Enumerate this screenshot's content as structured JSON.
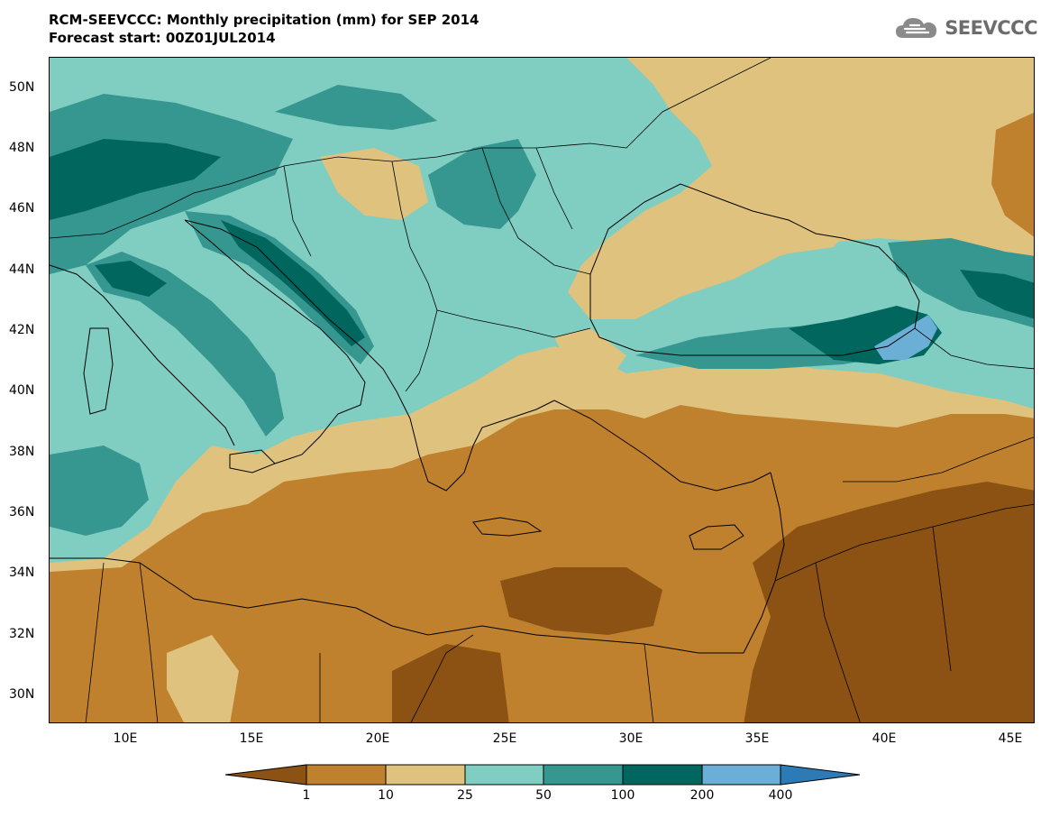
{
  "header": {
    "title_line1": "RCM-SEEVCCC: Monthly precipitation (mm) for SEP 2014",
    "title_line2": "Forecast start: 00Z01JUL2014"
  },
  "logo": {
    "text": "SEEVCCC",
    "icon": "cloud-logo-icon"
  },
  "map": {
    "projection": "lat-lon",
    "lon_range": [
      7,
      46
    ],
    "lat_range": [
      29,
      51
    ],
    "lat_ticks": [
      "50N",
      "48N",
      "46N",
      "44N",
      "42N",
      "40N",
      "38N",
      "36N",
      "34N",
      "32N",
      "30N"
    ],
    "lon_ticks": [
      "10E",
      "15E",
      "20E",
      "25E",
      "30E",
      "35E",
      "40E",
      "45E"
    ],
    "features": [
      "coastlines",
      "country-borders"
    ]
  },
  "legend": {
    "labels": [
      "1",
      "10",
      "25",
      "50",
      "100",
      "200",
      "400"
    ],
    "colors": [
      "#8c5214",
      "#bf812d",
      "#dfc27d",
      "#80cdc1",
      "#35978f",
      "#01665e",
      "#6baed6",
      "#2c7bb6"
    ]
  }
}
